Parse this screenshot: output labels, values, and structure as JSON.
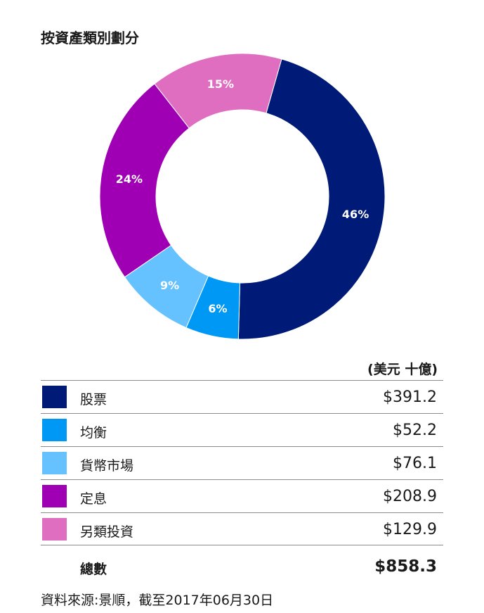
{
  "title": "按資產類別劃分",
  "units": "(美元 十億)",
  "chart_data": {
    "type": "pie",
    "categories": [
      "股票",
      "均衡",
      "貨幣市場",
      "定息",
      "另類投資"
    ],
    "values": [
      46,
      6,
      9,
      24,
      15
    ],
    "labels": [
      "46%",
      "6%",
      "9%",
      "24%",
      "15%"
    ],
    "colors": [
      "#001a78",
      "#0098f5",
      "#66c2ff",
      "#a000b4",
      "#e06ec0"
    ]
  },
  "table": {
    "rows": [
      {
        "label": "股票",
        "value": "$391.2",
        "color": "#001a78"
      },
      {
        "label": "均衡",
        "value": "$52.2",
        "color": "#0098f5"
      },
      {
        "label": "貨幣市場",
        "value": "$76.1",
        "color": "#66c2ff"
      },
      {
        "label": "定息",
        "value": "$208.9",
        "color": "#a000b4"
      },
      {
        "label": "另類投資",
        "value": "$129.9",
        "color": "#e06ec0"
      }
    ],
    "total_label": "總數",
    "total_value": "$858.3"
  },
  "source": "資料來源:景順，截至2017年06月30日"
}
